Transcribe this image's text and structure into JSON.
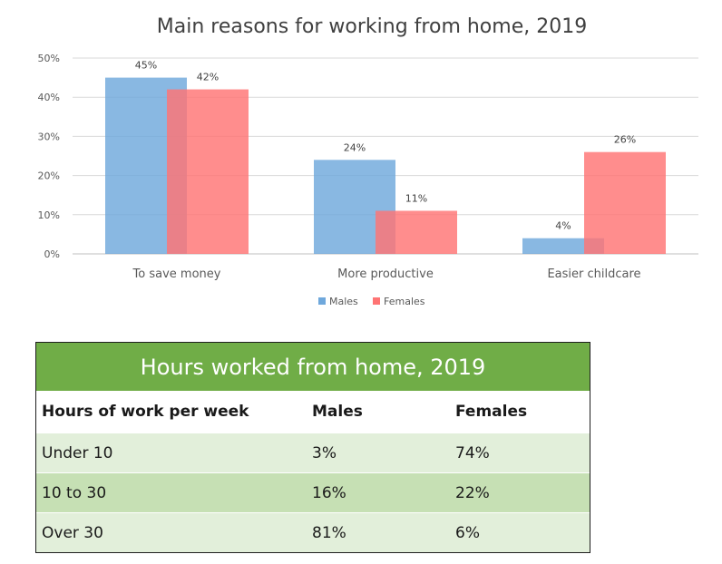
{
  "colors": {
    "males": "#6fa8dc",
    "females": "#ff7474",
    "table_title_bg": "#70ad47",
    "row_light": "#e2efda",
    "row_dark": "#c6e0b4",
    "header_bg": "#ffffff"
  },
  "chart_data": {
    "type": "bar",
    "title": "Main reasons for working from home, 2019",
    "categories": [
      "To save money",
      "More productive",
      "Easier childcare"
    ],
    "series": [
      {
        "name": "Males",
        "values": [
          45,
          24,
          4
        ],
        "labels": [
          "45%",
          "24%",
          "4%"
        ]
      },
      {
        "name": "Females",
        "values": [
          42,
          11,
          26
        ],
        "labels": [
          "42%",
          "11%",
          "26%"
        ]
      }
    ],
    "ylim": [
      0,
      50
    ],
    "yticks": [
      {
        "value": 0,
        "label": "0%"
      },
      {
        "value": 10,
        "label": "10%"
      },
      {
        "value": 20,
        "label": "20%"
      },
      {
        "value": 30,
        "label": "30%"
      },
      {
        "value": 40,
        "label": "40%"
      },
      {
        "value": 50,
        "label": "50%"
      }
    ],
    "grid": true,
    "legend_position": "bottom"
  },
  "table": {
    "title": "Hours worked from home, 2019",
    "headers": [
      "Hours of work per week",
      "Males",
      "Females"
    ],
    "rows": [
      [
        "Under 10",
        "3%",
        "74%"
      ],
      [
        "10 to 30",
        "16%",
        "22%"
      ],
      [
        "Over 30",
        "81%",
        "6%"
      ]
    ]
  }
}
